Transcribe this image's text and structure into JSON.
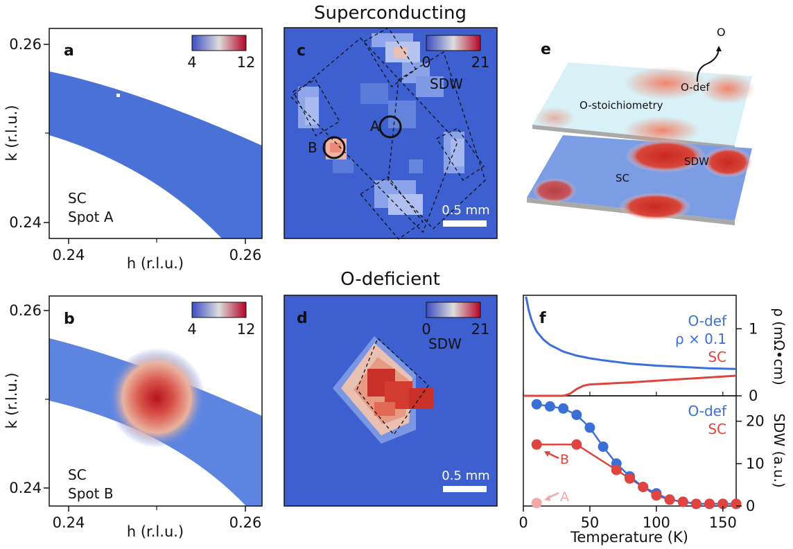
{
  "titles": {
    "top": "Superconducting",
    "bottom": "O-deficient"
  },
  "panels": {
    "a": {
      "letter": "a",
      "note_line1": "SC",
      "note_line2": "Spot A",
      "cbar_min": "4",
      "cbar_max": "12"
    },
    "b": {
      "letter": "b",
      "note_line1": "SC",
      "note_line2": "Spot B",
      "cbar_min": "4",
      "cbar_max": "12"
    },
    "c": {
      "letter": "c",
      "cbar_min": "0",
      "cbar_max": "21",
      "sdw_label": "SDW",
      "spot_a": "A",
      "spot_b": "B",
      "scale_label": "0.5 mm"
    },
    "d": {
      "letter": "d",
      "cbar_min": "0",
      "cbar_max": "21",
      "sdw_label": "SDW",
      "scale_label": "0.5 mm"
    },
    "e": {
      "letter": "e",
      "o_label": "O",
      "odef_label": "O-def",
      "ostoich_label": "O-stoichiometry",
      "sc_label": "SC",
      "sdw_label": "SDW"
    },
    "f": {
      "letter": "f"
    }
  },
  "axes": {
    "k_label": "k (r.l.u.)",
    "h_label": "h (r.l.u.)",
    "k_ticks": [
      "0.26",
      "0.24"
    ],
    "h_ticks": [
      "0.24",
      "0.26"
    ]
  },
  "colors": {
    "blue": "#3a6fd8",
    "red": "#e0443e",
    "pink": "#f2a8a6",
    "map_bg": "#3d5fcf"
  },
  "chart_data": [
    {
      "type": "line",
      "panel": "f-top",
      "xlim": [
        0,
        160
      ],
      "ylim": [
        0,
        1.5
      ],
      "ylabel": "ρ (mΩ•cm)",
      "yticks": [
        "0",
        "1"
      ],
      "legend": [
        "O-def",
        "ρ × 0.1",
        "SC"
      ],
      "series": [
        {
          "name": "O-def",
          "x": [
            2,
            4,
            6,
            8,
            10,
            15,
            20,
            30,
            40,
            50,
            60,
            80,
            100,
            120,
            140,
            160
          ],
          "y": [
            1.48,
            1.28,
            1.14,
            1.04,
            0.96,
            0.84,
            0.76,
            0.66,
            0.6,
            0.56,
            0.53,
            0.48,
            0.45,
            0.43,
            0.41,
            0.4
          ]
        },
        {
          "name": "SC",
          "x": [
            0,
            30,
            35,
            40,
            45,
            50,
            80,
            120,
            160
          ],
          "y": [
            0,
            0,
            0.03,
            0.1,
            0.15,
            0.17,
            0.2,
            0.25,
            0.3
          ]
        }
      ]
    },
    {
      "type": "scatter",
      "panel": "f-bottom",
      "xlim": [
        0,
        160
      ],
      "ylim": [
        0,
        26
      ],
      "xlabel": "Temperature (K)",
      "ylabel": "SDW (a.u.)",
      "xticks": [
        "0",
        "50",
        "100",
        "150"
      ],
      "yticks": [
        "0",
        "10",
        "20"
      ],
      "legend": [
        "O-def",
        "SC"
      ],
      "annotations": [
        "B",
        "A"
      ],
      "series": [
        {
          "name": "O-def",
          "x": [
            10,
            20,
            30,
            40,
            50,
            60,
            70,
            80,
            90,
            100,
            110,
            120,
            130,
            140,
            150,
            160
          ],
          "y": [
            24,
            23.5,
            23,
            21.5,
            18.5,
            14,
            10,
            7,
            4.5,
            3,
            1.5,
            1,
            0.5,
            0.5,
            0.5,
            0.5
          ]
        },
        {
          "name": "SC",
          "x": [
            10,
            40,
            70,
            80,
            90,
            100,
            110,
            120,
            130,
            140,
            150,
            160
          ],
          "y": [
            14.5,
            14.5,
            8.5,
            6.5,
            4.5,
            2.5,
            1.5,
            1,
            0.5,
            0.5,
            0.5,
            0.5
          ]
        },
        {
          "name": "A",
          "x": [
            10
          ],
          "y": [
            0.7
          ]
        }
      ]
    }
  ]
}
